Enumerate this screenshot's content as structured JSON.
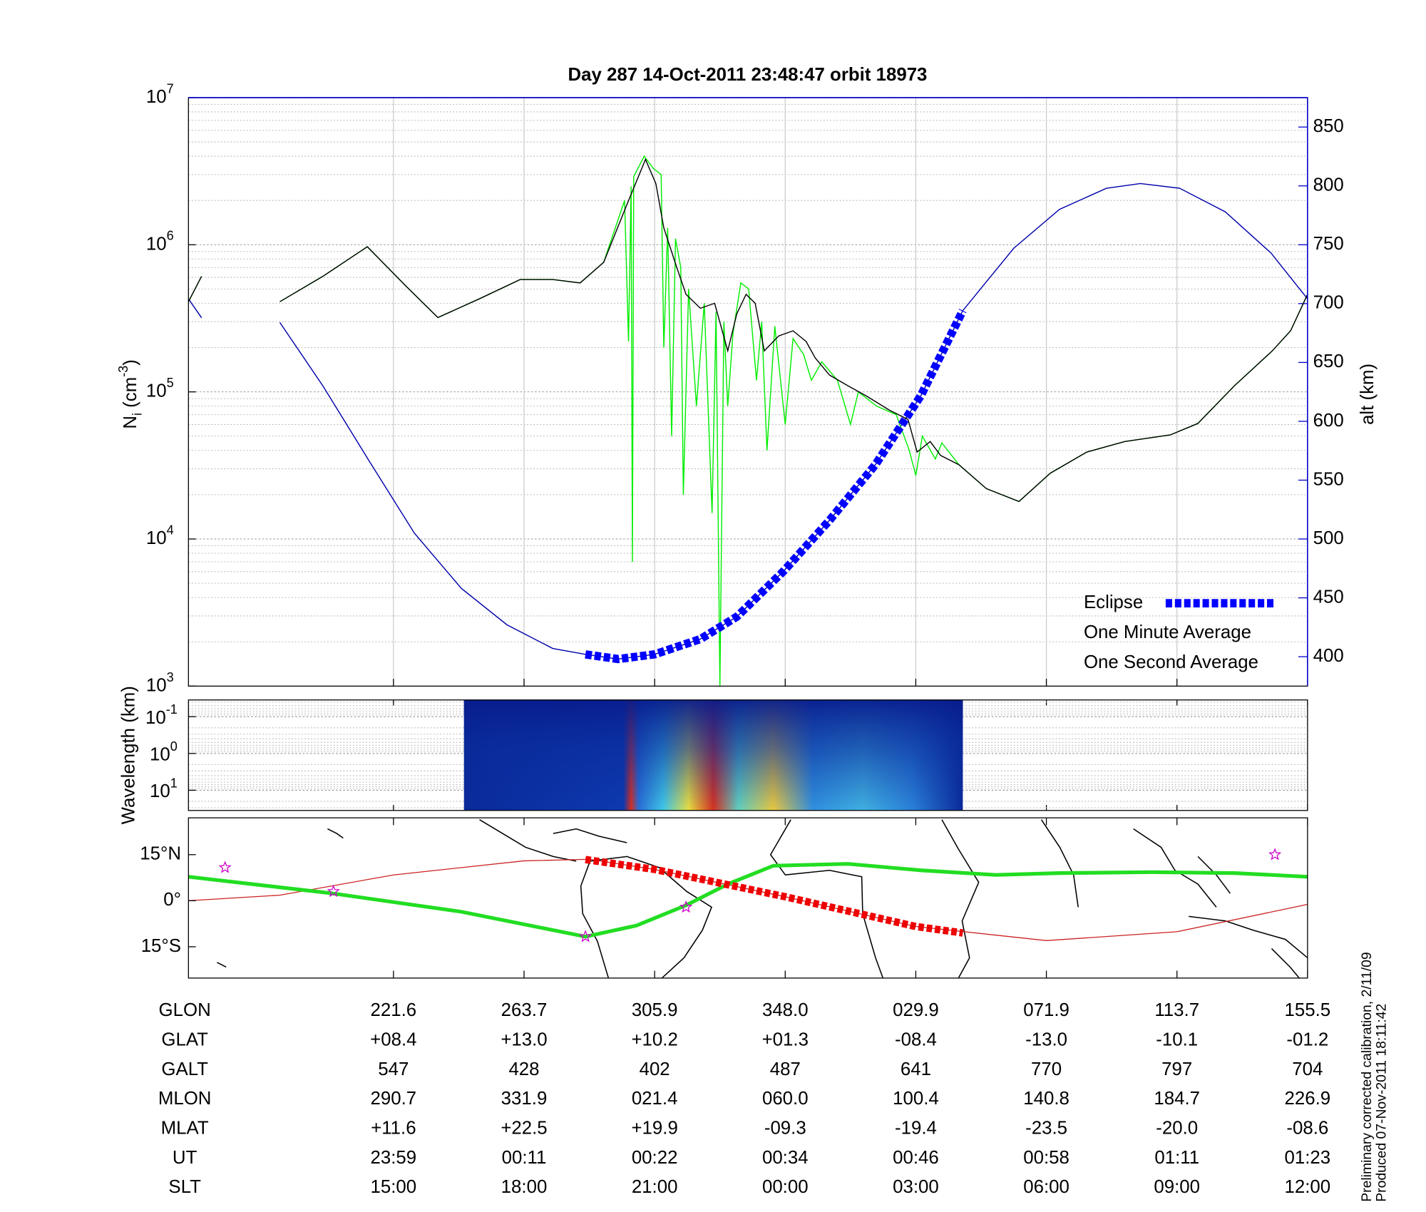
{
  "chart_data": {
    "type": "line",
    "title": "Day 287  14-Oct-2011 23:48:47   orbit 18973",
    "ylabel": [
      "N",
      "i",
      " (cm",
      "-3",
      ")"
    ],
    "y2label": "alt (km)",
    "xlim": [
      -1.57,
      7
    ],
    "xticks": [
      0,
      1,
      2,
      3,
      4,
      5,
      6,
      7
    ],
    "ylim": [
      1000,
      10000000
    ],
    "yscale": "log",
    "yticks": [
      {
        "value": 1000,
        "label": "10",
        "exponent": "3"
      },
      {
        "value": 10000,
        "label": "10",
        "exponent": "4"
      },
      {
        "value": 100000,
        "label": "10",
        "exponent": "5"
      },
      {
        "value": 1000000,
        "label": "10",
        "exponent": "6"
      },
      {
        "value": 10000000,
        "label": "10",
        "exponent": "7"
      }
    ],
    "y2lim": [
      375,
      875
    ],
    "y2ticks": [
      400,
      450,
      500,
      550,
      600,
      650,
      700,
      750,
      800,
      850
    ],
    "y2color": "#0000cc",
    "grid": true,
    "legend": "lower right",
    "series": [
      {
        "color": "#0000aa",
        "axis": "y2",
        "x": [
          -1.57,
          -1.47,
          -1.2,
          -0.87,
          -0.54,
          -0.19,
          0.16,
          0.52,
          0.87,
          1.22,
          1.47,
          1.72,
          2.0,
          2.35,
          2.63,
          2.99,
          3.34,
          3.69,
          4.04,
          4.36,
          4.75,
          5.1,
          5.46,
          5.72,
          6.02,
          6.37,
          6.72,
          7
        ],
        "values": [
          704,
          688,
          null,
          684,
          630,
          567,
          505,
          458,
          427,
          407,
          402,
          398,
          402,
          415,
          434,
          473,
          516,
          563,
          622,
          694,
          747,
          780,
          798,
          802,
          798,
          778,
          743,
          704
        ]
      },
      {
        "name": "One Second Average",
        "color": "#00ee00",
        "x": [
          -1.57,
          -1.47,
          -1.2,
          -0.87,
          -0.54,
          -0.2,
          0.09,
          0.34,
          0.66,
          0.97,
          1.22,
          1.43,
          1.61,
          1.77,
          1.8,
          1.82,
          1.83,
          1.84,
          1.92,
          1.99,
          2.05,
          2.07,
          2.1,
          2.13,
          2.16,
          2.2,
          2.22,
          2.26,
          2.32,
          2.38,
          2.44,
          2.47,
          2.5,
          2.53,
          2.56,
          2.6,
          2.66,
          2.72,
          2.78,
          2.82,
          2.86,
          2.92,
          3.0,
          3.06,
          3.14,
          3.2,
          3.28,
          3.4,
          3.5,
          3.56,
          3.7,
          3.85,
          3.95,
          4.0,
          4.05,
          4.15,
          4.2,
          4.33,
          4.54,
          4.79,
          5.03,
          5.31,
          5.6,
          5.95,
          6.16,
          6.44,
          6.73,
          6.87,
          7
        ],
        "values": [
          410000,
          610000,
          null,
          410000,
          610000,
          970000,
          530000,
          320000,
          430000,
          580000,
          580000,
          550000,
          760000,
          2000000,
          220000,
          2500000,
          7000,
          2900000,
          4000000,
          3300000,
          3000000,
          200000,
          1300000,
          50000,
          1100000,
          700000,
          20000,
          500000,
          80000,
          400000,
          15000,
          350000,
          1000,
          300000,
          80000,
          250000,
          550000,
          500000,
          120000,
          300000,
          40000,
          280000,
          60000,
          230000,
          180000,
          120000,
          160000,
          120000,
          60000,
          100000,
          80000,
          70000,
          40000,
          27000,
          50000,
          35000,
          45000,
          32000,
          22000,
          18000,
          28000,
          39000,
          46000,
          51000,
          61000,
          110000,
          190000,
          260000,
          460000
        ]
      },
      {
        "name": "One Minute Average",
        "color": "#000000",
        "x": [
          -1.57,
          -1.47,
          -1.2,
          -0.87,
          -0.54,
          -0.2,
          0.09,
          0.34,
          0.66,
          0.97,
          1.22,
          1.43,
          1.61,
          1.79,
          1.93,
          2.01,
          2.07,
          2.17,
          2.24,
          2.35,
          2.46,
          2.56,
          2.63,
          2.7,
          2.77,
          2.84,
          2.95,
          3.06,
          3.16,
          3.23,
          3.34,
          3.48,
          3.62,
          3.8,
          3.94,
          4.01,
          4.11,
          4.19,
          4.33,
          4.54,
          4.79,
          5.03,
          5.31,
          5.6,
          5.95,
          6.16,
          6.44,
          6.73,
          6.87,
          7
        ],
        "values": [
          410000,
          610000,
          null,
          410000,
          610000,
          970000,
          530000,
          320000,
          430000,
          580000,
          580000,
          550000,
          760000,
          1900000,
          3800000,
          2600000,
          1300000,
          700000,
          460000,
          370000,
          400000,
          190000,
          340000,
          460000,
          400000,
          190000,
          240000,
          260000,
          220000,
          170000,
          130000,
          110000,
          94000,
          75000,
          65000,
          39000,
          46000,
          37000,
          32000,
          22000,
          18000,
          28000,
          39000,
          46000,
          51000,
          61000,
          110000,
          190000,
          260000,
          460000
        ]
      },
      {
        "name": "Eclipse",
        "color": "#0000ff",
        "axis": "y2",
        "style": "dashed",
        "x": [
          1.47,
          1.72,
          2.0,
          2.35,
          2.63,
          2.99,
          3.34,
          3.69,
          4.04,
          4.36
        ],
        "values": [
          402,
          398,
          402,
          415,
          434,
          473,
          516,
          563,
          622,
          694
        ]
      }
    ],
    "spectrogram": {
      "ylabel": "Wavelength (km)",
      "ylim": [
        0.035,
        35.5
      ],
      "yscale": "log",
      "inverted": true,
      "xlim": [
        0.54,
        4.36
      ],
      "yticks": [
        {
          "value": 0.1,
          "label": "10",
          "exponent": "-1"
        },
        {
          "value": 1,
          "label": "10",
          "exponent": "0"
        },
        {
          "value": 10,
          "label": "10",
          "exponent": "1"
        }
      ]
    },
    "map": {
      "ylim": [
        -25.2,
        27
      ],
      "yticks": [
        {
          "value": 15,
          "label": "15°N"
        },
        {
          "value": 0,
          "label": "0°"
        },
        {
          "value": -15,
          "label": "15°S"
        }
      ],
      "series": [
        {
          "color": "#cc2222",
          "x": [
            -1.57,
            -0.87,
            0,
            1,
            1.5,
            2,
            3,
            4,
            5,
            6,
            7
          ],
          "values": [
            0,
            1.8,
            8.4,
            13.0,
            13.5,
            10.2,
            1.3,
            -8.4,
            -13.0,
            -10.1,
            -1.2
          ]
        },
        {
          "color": "#22dd22",
          "x": [
            -1.57,
            -0.47,
            0.52,
            1.47,
            1.86,
            2.24,
            2.56,
            2.91,
            3.48,
            4.04,
            4.61,
            5.1,
            5.81,
            6.44,
            7
          ],
          "values": [
            7.8,
            2.4,
            -3.6,
            -11.7,
            -8.1,
            -1.5,
            5.4,
            11.4,
            12,
            9.9,
            8.4,
            9,
            9.3,
            9,
            7.8
          ]
        },
        {
          "color": "#ee0000",
          "style": "dashed",
          "x": [
            1.47,
            2,
            3,
            4,
            4.36
          ],
          "values": [
            13.4,
            10.2,
            1.3,
            -8.4,
            -10.5
          ]
        }
      ],
      "stars": {
        "color": "#cc00cc",
        "x": [
          -1.29,
          -0.46,
          1.47,
          2.24,
          6.75
        ],
        "values": [
          10.8,
          3,
          -11.7,
          -2.1,
          15
        ]
      }
    },
    "table": {
      "rows": [
        [
          "GLON",
          "221.6",
          "263.7",
          "305.9",
          "348.0",
          "029.9",
          "071.9",
          "113.7",
          "155.5"
        ],
        [
          "GLAT",
          "+08.4",
          "+13.0",
          "+10.2",
          "+01.3",
          "-08.4",
          "-13.0",
          "-10.1",
          "-01.2"
        ],
        [
          "GALT",
          "547",
          "428",
          "402",
          "487",
          "641",
          "770",
          "797",
          "704"
        ],
        [
          "MLON",
          "290.7",
          "331.9",
          "021.4",
          "060.0",
          "100.4",
          "140.8",
          "184.7",
          "226.9"
        ],
        [
          "MLAT",
          "+11.6",
          "+22.5",
          "+19.9",
          "-09.3",
          "-19.4",
          "-23.5",
          "-20.0",
          "-08.6"
        ],
        [
          "UT",
          "23:59",
          "00:11",
          "00:22",
          "00:34",
          "00:46",
          "00:58",
          "01:11",
          "01:23"
        ],
        [
          "SLT",
          "15:00",
          "18:00",
          "21:00",
          "00:00",
          "03:00",
          "06:00",
          "09:00",
          "12:00"
        ]
      ]
    },
    "notes": [
      "Preliminary corrected calibration, 2/11/09",
      "Produced 07-Nov-2011 18:11:42"
    ]
  }
}
